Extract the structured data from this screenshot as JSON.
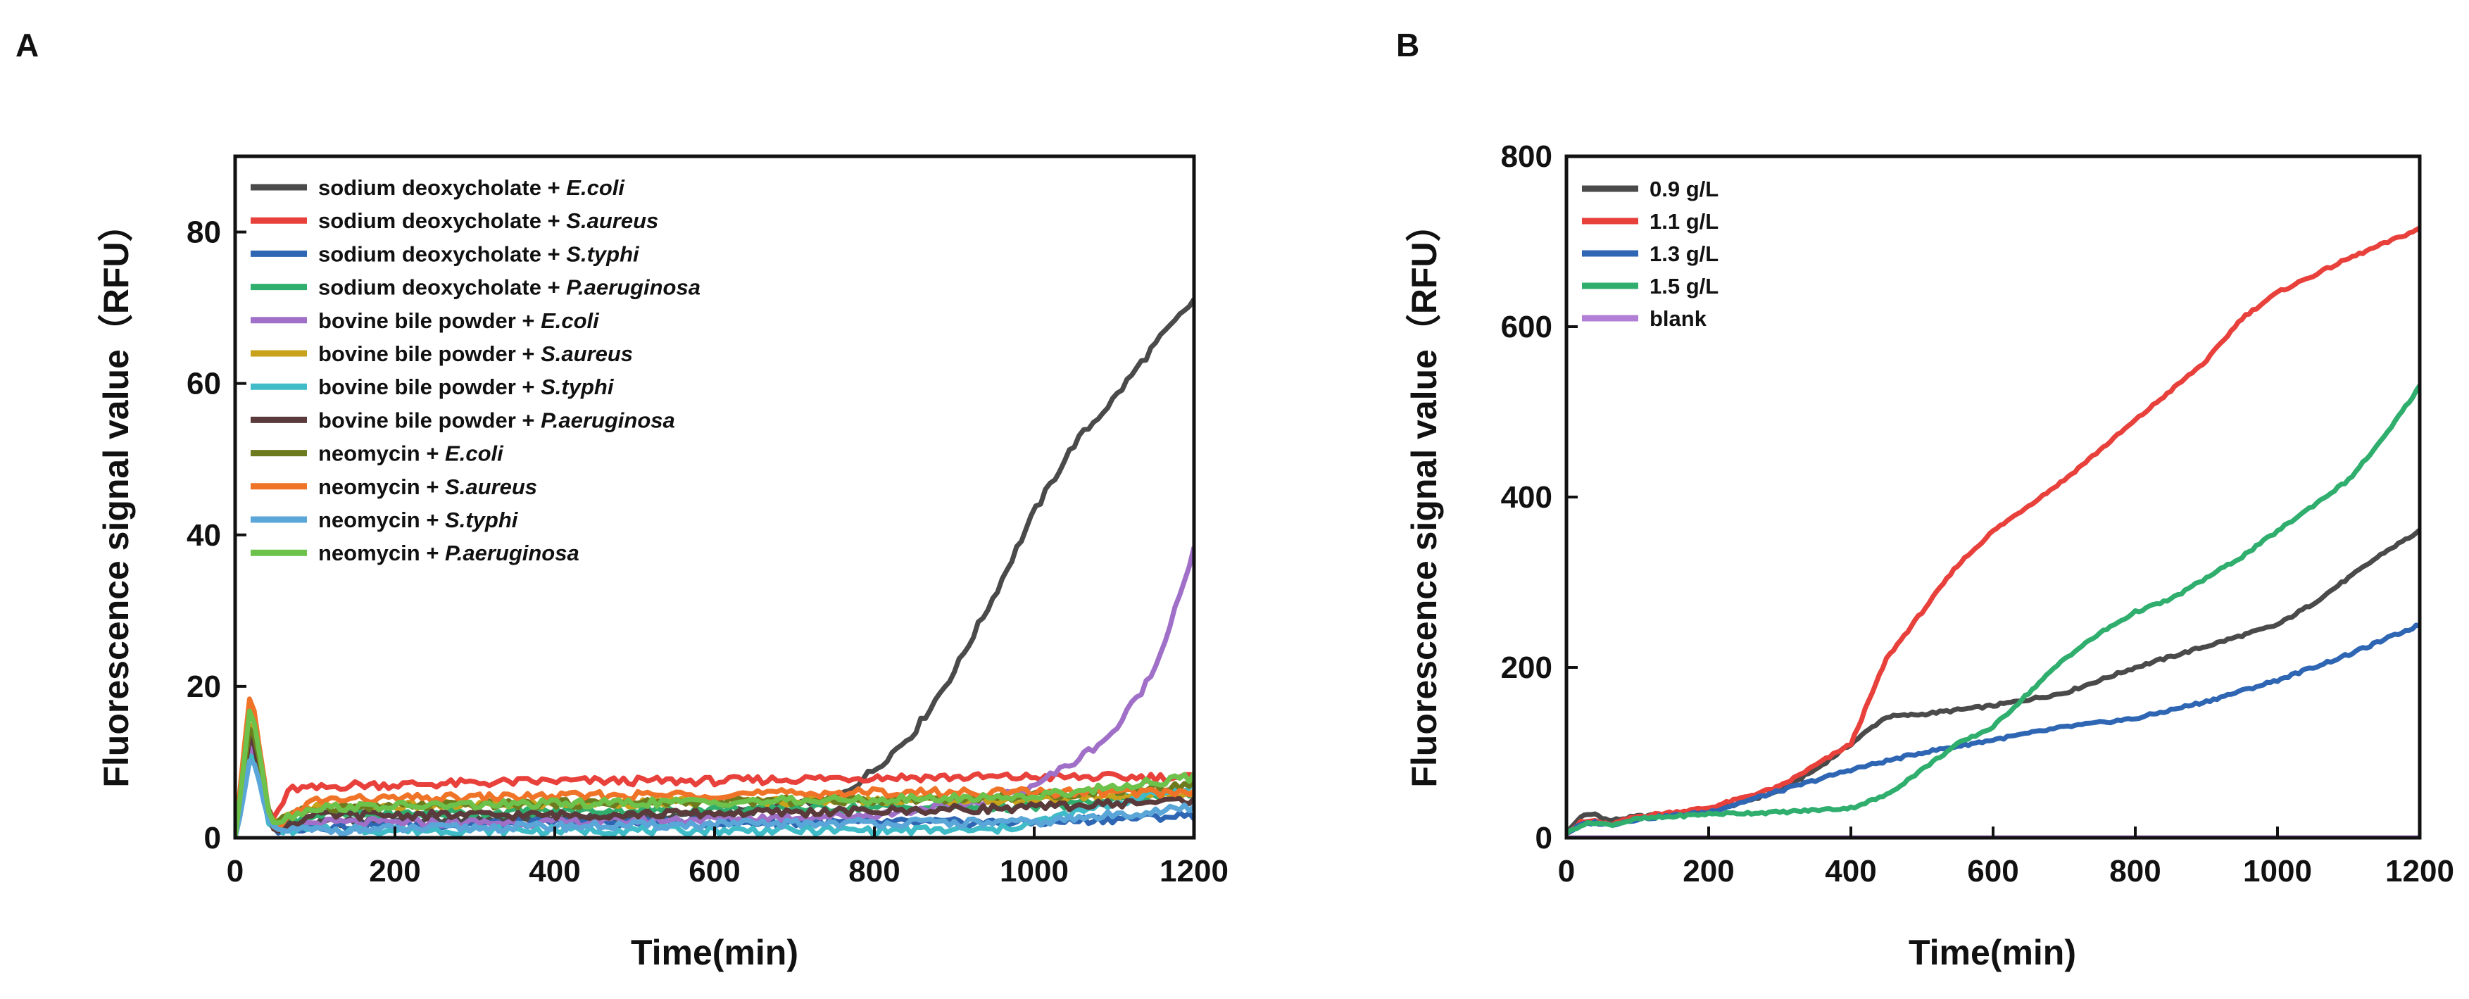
{
  "chart_data": [
    {
      "panel": "A",
      "type": "line",
      "xlabel": "Time(min)",
      "ylabel": "Fluorescence signal value（RFU）",
      "xlim": [
        0,
        1200
      ],
      "ylim": [
        0,
        90
      ],
      "xticks": [
        0,
        200,
        400,
        600,
        800,
        1000,
        1200
      ],
      "yticks": [
        0,
        20,
        40,
        60,
        80
      ],
      "series": [
        {
          "prefix": "sodium deoxycholate + ",
          "species": "E.coli",
          "color": "#4a4a4a",
          "x": [
            0,
            20,
            45,
            100,
            300,
            600,
            750,
            800,
            850,
            900,
            950,
            1000,
            1050,
            1100,
            1150,
            1200
          ],
          "y": [
            0,
            15,
            2,
            2,
            2.5,
            3,
            5,
            9,
            14,
            22,
            32,
            43,
            52,
            58,
            65,
            71
          ]
        },
        {
          "prefix": "sodium deoxycholate + ",
          "species": "S.aureus",
          "color": "#e8413c",
          "x": [
            0,
            20,
            45,
            70,
            100,
            150,
            200,
            400,
            600,
            800,
            1000,
            1200
          ],
          "y": [
            0,
            16,
            2,
            6.5,
            6.5,
            7,
            7,
            7.5,
            7.5,
            8,
            8,
            8
          ]
        },
        {
          "prefix": "sodium deoxycholate + ",
          "species": "S.typhi",
          "color": "#2e66b4",
          "x": [
            0,
            20,
            45,
            100,
            400,
            800,
            1000,
            1200
          ],
          "y": [
            0,
            12,
            1,
            1.5,
            2,
            2,
            2,
            3
          ]
        },
        {
          "prefix": "sodium deoxycholate + ",
          "species": "P.aeruginosa",
          "color": "#2fae6e",
          "x": [
            0,
            20,
            45,
            100,
            400,
            800,
            1000,
            1200
          ],
          "y": [
            0,
            14,
            2,
            3,
            3.5,
            4,
            4,
            6
          ]
        },
        {
          "prefix": "bovine bile powder + ",
          "species": "E.coli",
          "color": "#a070c8",
          "x": [
            0,
            20,
            45,
            100,
            400,
            800,
            950,
            1000,
            1050,
            1100,
            1150,
            1200
          ],
          "y": [
            0,
            13,
            1,
            2,
            2,
            3,
            5,
            7,
            10,
            14,
            22,
            38
          ]
        },
        {
          "prefix": "bovine bile powder + ",
          "species": "S.aureus",
          "color": "#c8a21a",
          "x": [
            0,
            20,
            45,
            100,
            400,
            800,
            1000,
            1200
          ],
          "y": [
            0,
            17,
            2,
            4,
            4.5,
            5,
            5,
            6
          ]
        },
        {
          "prefix": "bovine bile powder + ",
          "species": "S.typhi",
          "color": "#3fbcc8",
          "x": [
            0,
            20,
            45,
            100,
            400,
            800,
            950,
            1000,
            1200
          ],
          "y": [
            0,
            12,
            1,
            1,
            1,
            1,
            1,
            2,
            7
          ]
        },
        {
          "prefix": "bovine bile powder + ",
          "species": "P.aeruginosa",
          "color": "#5a3a3a",
          "x": [
            0,
            20,
            45,
            100,
            400,
            800,
            1000,
            1200
          ],
          "y": [
            0,
            15,
            1,
            3,
            3,
            3.5,
            4,
            5
          ]
        },
        {
          "prefix": "neomycin + ",
          "species": "E.coli",
          "color": "#6e7a1e",
          "x": [
            0,
            20,
            45,
            100,
            400,
            800,
            1000,
            1200
          ],
          "y": [
            0,
            16,
            2,
            4,
            4.5,
            5,
            5.5,
            7
          ]
        },
        {
          "prefix": "neomycin + ",
          "species": "S.aureus",
          "color": "#f07428",
          "x": [
            0,
            20,
            45,
            100,
            400,
            800,
            1000,
            1200
          ],
          "y": [
            0,
            20,
            1,
            5,
            5.5,
            6,
            6,
            6
          ]
        },
        {
          "prefix": "neomycin + ",
          "species": "S.typhi",
          "color": "#5aa6d8",
          "x": [
            0,
            20,
            45,
            100,
            400,
            800,
            1000,
            1200
          ],
          "y": [
            0,
            11,
            1,
            1,
            1.5,
            2,
            2,
            4
          ]
        },
        {
          "prefix": "neomycin + ",
          "species": "P.aeruginosa",
          "color": "#6cc24a",
          "x": [
            0,
            20,
            45,
            100,
            400,
            800,
            1000,
            1200
          ],
          "y": [
            0,
            18,
            2,
            4,
            4.5,
            5,
            5.5,
            8
          ]
        }
      ]
    },
    {
      "panel": "B",
      "type": "line",
      "xlabel": "Time(min)",
      "ylabel": "Fluorescence signal value（RFU）",
      "xlim": [
        0,
        1200
      ],
      "ylim": [
        0,
        800
      ],
      "xticks": [
        0,
        200,
        400,
        600,
        800,
        1000,
        1200
      ],
      "yticks": [
        0,
        200,
        400,
        600,
        800
      ],
      "series": [
        {
          "name": "0.9 g/L",
          "color": "#4a4a4a",
          "x": [
            0,
            20,
            40,
            60,
            100,
            200,
            300,
            350,
            400,
            430,
            450,
            500,
            600,
            700,
            800,
            900,
            1000,
            1050,
            1100,
            1150,
            1200
          ],
          "y": [
            5,
            25,
            28,
            20,
            25,
            30,
            55,
            80,
            110,
            130,
            142,
            145,
            155,
            170,
            200,
            225,
            250,
            275,
            305,
            335,
            360
          ]
        },
        {
          "name": "1.1 g/L",
          "color": "#e8413c",
          "x": [
            0,
            20,
            40,
            60,
            100,
            200,
            300,
            350,
            400,
            420,
            450,
            500,
            550,
            600,
            700,
            800,
            900,
            950,
            1000,
            1100,
            1200
          ],
          "y": [
            5,
            18,
            20,
            15,
            25,
            35,
            60,
            85,
            110,
            150,
            210,
            265,
            320,
            360,
            420,
            490,
            560,
            610,
            640,
            680,
            715
          ]
        },
        {
          "name": "1.3 g/L",
          "color": "#2e66b4",
          "x": [
            0,
            20,
            40,
            60,
            100,
            200,
            300,
            400,
            500,
            600,
            700,
            800,
            900,
            1000,
            1100,
            1200
          ],
          "y": [
            5,
            15,
            18,
            15,
            22,
            30,
            55,
            80,
            100,
            115,
            130,
            140,
            160,
            185,
            215,
            250
          ]
        },
        {
          "name": "1.5 g/L",
          "color": "#2fae6e",
          "x": [
            0,
            20,
            40,
            60,
            100,
            200,
            300,
            400,
            450,
            500,
            550,
            600,
            650,
            700,
            750,
            800,
            850,
            900,
            950,
            1000,
            1050,
            1100,
            1150,
            1200
          ],
          "y": [
            5,
            15,
            18,
            15,
            22,
            28,
            30,
            35,
            50,
            80,
            110,
            130,
            170,
            210,
            240,
            265,
            280,
            305,
            330,
            360,
            390,
            420,
            470,
            530
          ]
        },
        {
          "name": "blank",
          "color": "#b27fd6",
          "x": [
            0,
            300,
            600,
            900,
            1200
          ],
          "y": [
            0,
            0,
            0,
            0,
            0
          ]
        }
      ]
    }
  ]
}
